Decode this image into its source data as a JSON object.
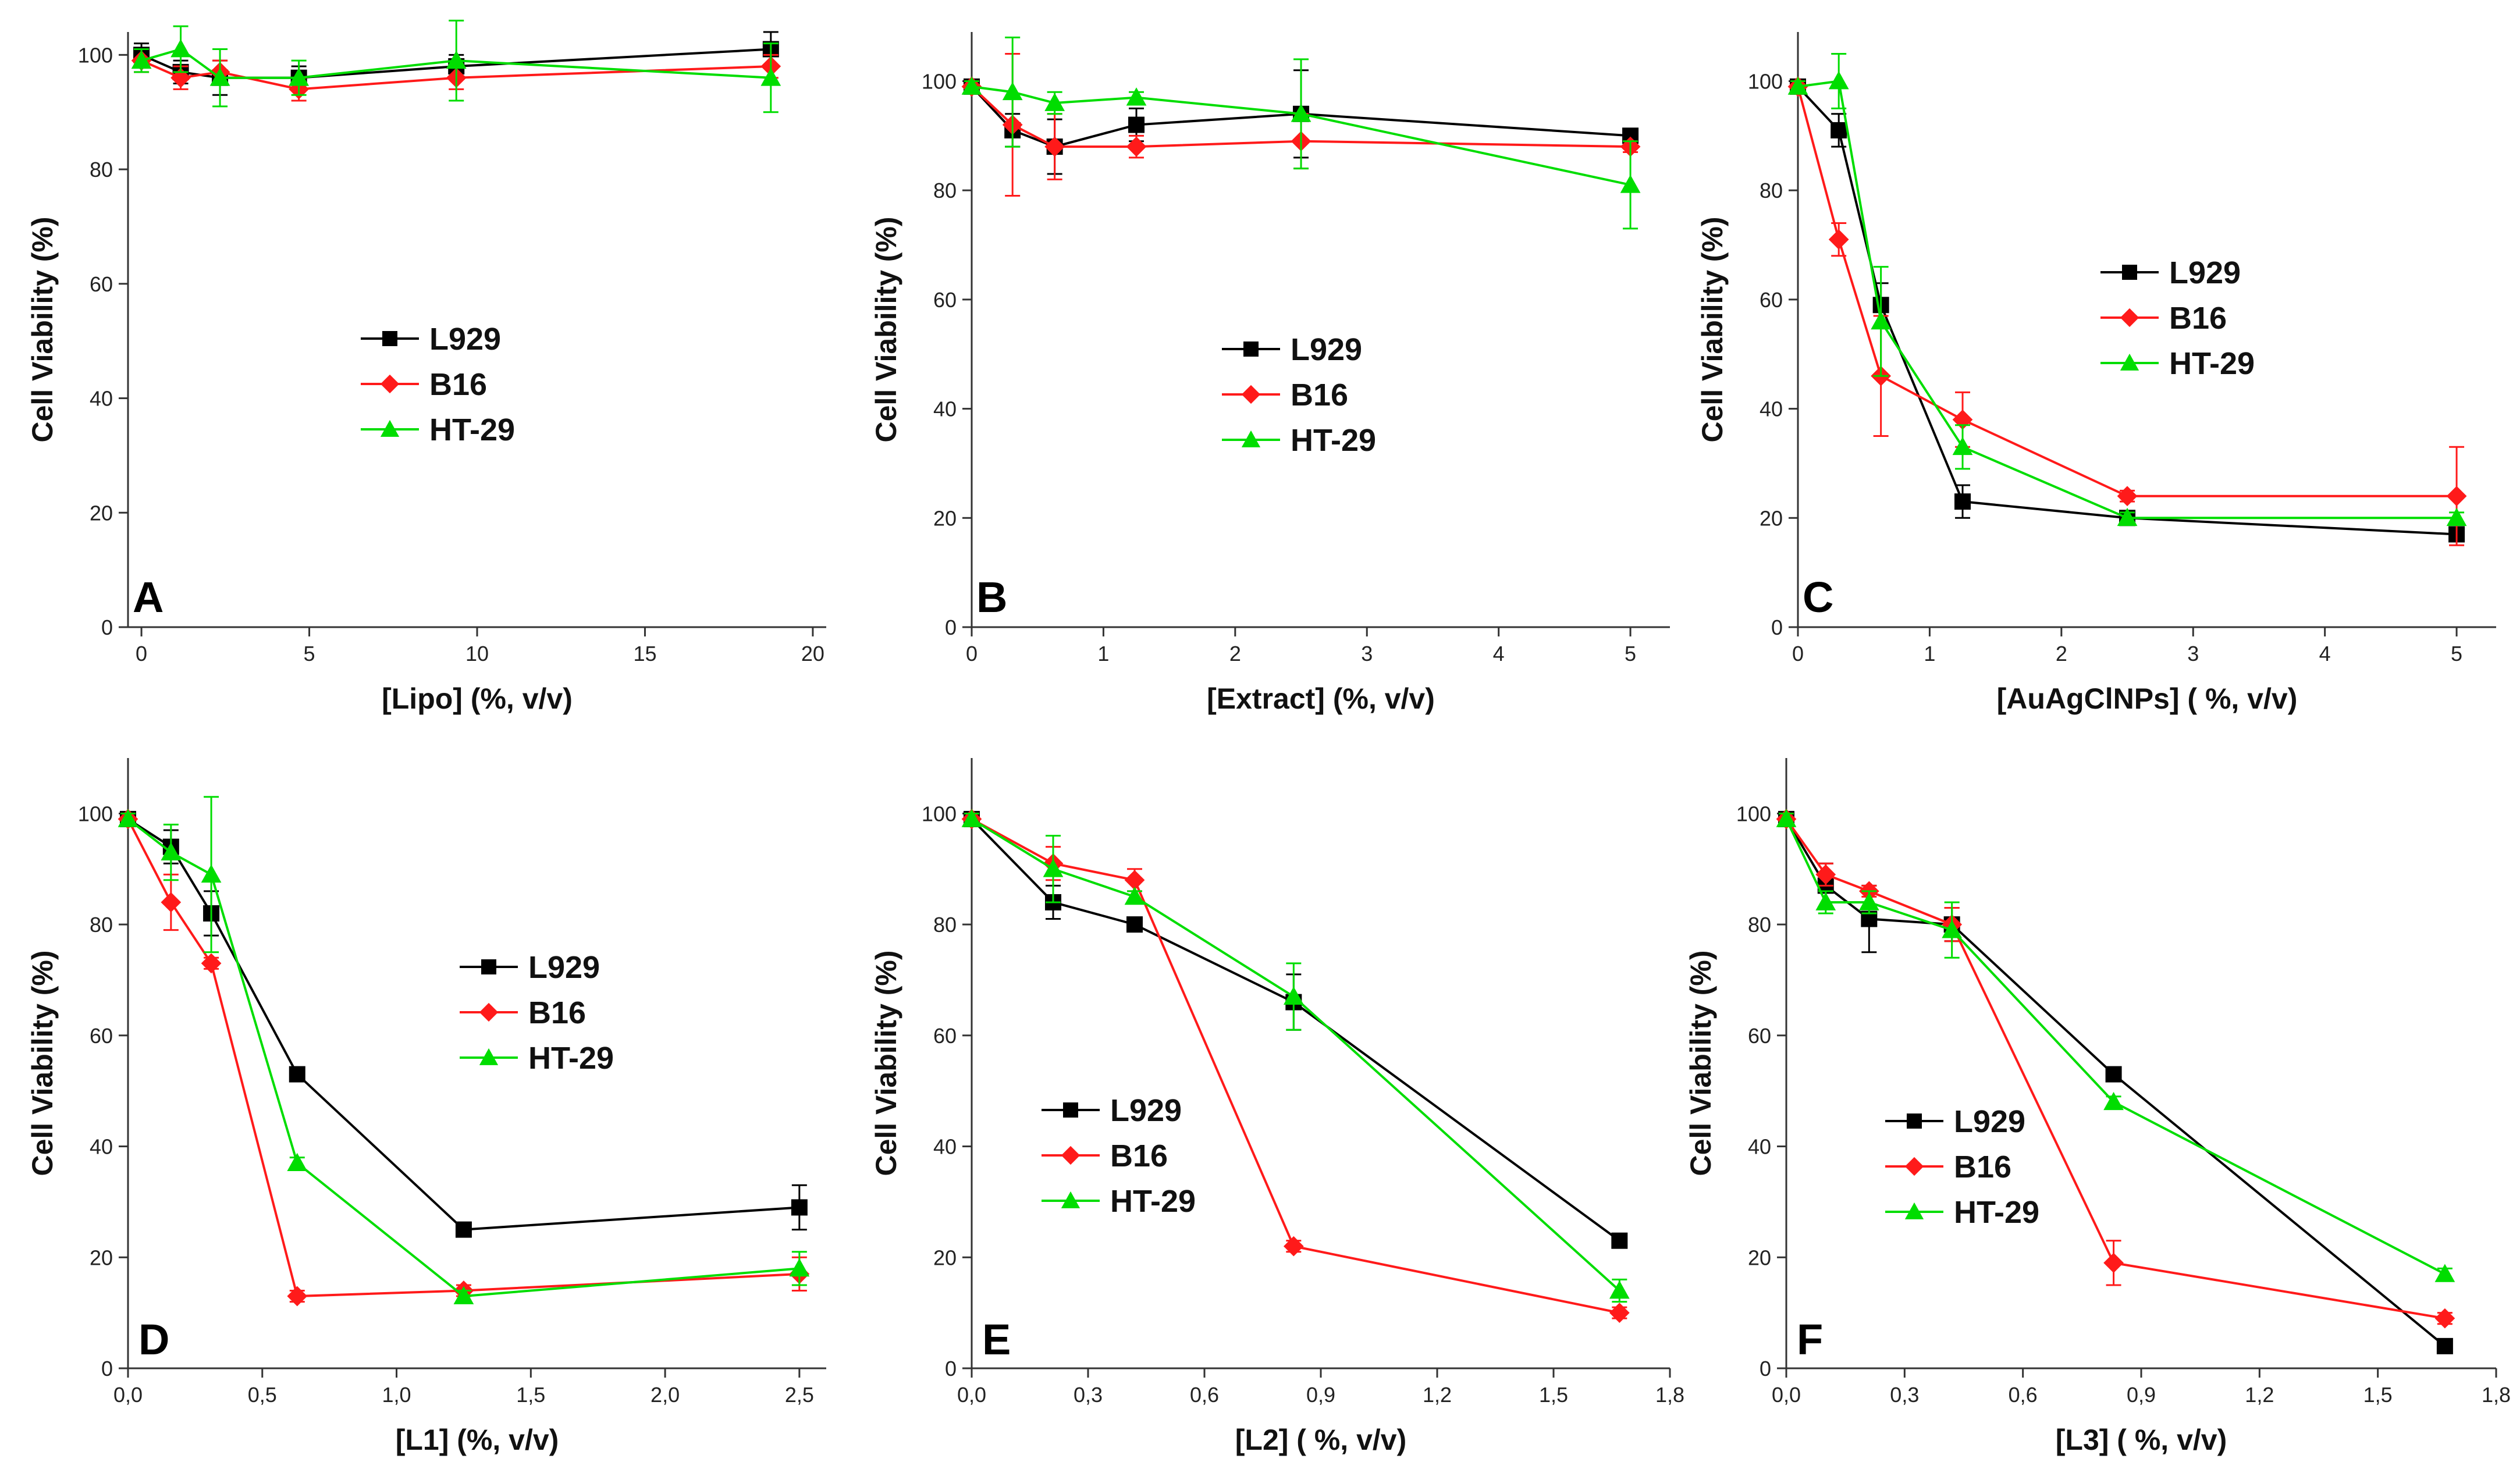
{
  "chart_data": [
    {
      "panel": "A",
      "type": "line",
      "xlabel": "[Lipo]  (%, v/v)",
      "ylabel": "Cell Viability  (%)",
      "xlim": [
        -0.4,
        20.4
      ],
      "ylim": [
        0,
        104
      ],
      "xticks": [
        0,
        5,
        10,
        15,
        20
      ],
      "xticklabels": [
        "0",
        "5",
        "10",
        "15",
        "20"
      ],
      "yticks": [
        0,
        20,
        40,
        60,
        80,
        100
      ],
      "yticklabels": [
        "0",
        "20",
        "40",
        "60",
        "80",
        "100"
      ],
      "legend": {
        "position": "center",
        "entries": [
          "L929",
          "B16",
          "HT-29"
        ]
      },
      "series": [
        {
          "name": "L929",
          "color": "#000000",
          "marker": "square",
          "x": [
            0,
            1.17,
            2.34,
            4.69,
            9.38,
            18.75
          ],
          "y": [
            100,
            97,
            96,
            96,
            98,
            101
          ],
          "err": [
            2,
            2,
            3,
            2,
            2,
            3
          ]
        },
        {
          "name": "B16",
          "color": "#ff1a1a",
          "marker": "diamond",
          "x": [
            0,
            1.17,
            2.34,
            4.69,
            9.38,
            18.75
          ],
          "y": [
            99,
            96,
            97,
            94,
            96,
            98
          ],
          "err": [
            2,
            2,
            2,
            2,
            2,
            2
          ]
        },
        {
          "name": "HT-29",
          "color": "#00dd00",
          "marker": "triangle",
          "x": [
            0,
            1.17,
            2.34,
            4.69,
            9.38,
            18.75
          ],
          "y": [
            99,
            101,
            96,
            96,
            99,
            96
          ],
          "err": [
            2,
            4,
            5,
            3,
            7,
            6
          ]
        }
      ]
    },
    {
      "panel": "B",
      "type": "line",
      "xlabel": "[Extract]   (%, v/v)",
      "ylabel": "Cell Viability (%)",
      "xlim": [
        0,
        5.3
      ],
      "ylim": [
        0,
        109
      ],
      "xticks": [
        0,
        1,
        2,
        3,
        4,
        5
      ],
      "xticklabels": [
        "0",
        "1",
        "2",
        "3",
        "4",
        "5"
      ],
      "yticks": [
        0,
        20,
        40,
        60,
        80,
        100
      ],
      "yticklabels": [
        "0",
        "20",
        "40",
        "60",
        "80",
        "100"
      ],
      "legend": {
        "position": "center",
        "entries": [
          "L929",
          "B16",
          "HT-29"
        ]
      },
      "series": [
        {
          "name": "L929",
          "color": "#000000",
          "marker": "square",
          "x": [
            0,
            0.31,
            0.63,
            1.25,
            2.5,
            5
          ],
          "y": [
            99,
            91,
            88,
            92,
            94,
            90
          ],
          "err": [
            1,
            3,
            5,
            3,
            8,
            1
          ]
        },
        {
          "name": "B16",
          "color": "#ff1a1a",
          "marker": "diamond",
          "x": [
            0,
            0.31,
            0.63,
            1.25,
            2.5,
            5
          ],
          "y": [
            99,
            92,
            88,
            88,
            89,
            88
          ],
          "err": [
            1,
            13,
            6,
            2,
            5,
            1
          ]
        },
        {
          "name": "HT-29",
          "color": "#00dd00",
          "marker": "triangle",
          "x": [
            0,
            0.31,
            0.63,
            1.25,
            2.5,
            5
          ],
          "y": [
            99,
            98,
            96,
            97,
            94,
            81
          ],
          "err": [
            1,
            10,
            2,
            1,
            10,
            8
          ]
        }
      ]
    },
    {
      "panel": "C",
      "type": "line",
      "xlabel": "[AuAgClNPs]  ( %, v/v)",
      "ylabel": "Cell Viability (%)",
      "xlim": [
        0,
        5.3
      ],
      "ylim": [
        0,
        109
      ],
      "xticks": [
        0,
        1,
        2,
        3,
        4,
        5
      ],
      "xticklabels": [
        "0",
        "1",
        "2",
        "3",
        "4",
        "5"
      ],
      "yticks": [
        0,
        20,
        40,
        60,
        80,
        100
      ],
      "yticklabels": [
        "0",
        "20",
        "40",
        "60",
        "80",
        "100"
      ],
      "legend": {
        "position": "upper-right",
        "entries": [
          "L929",
          "B16",
          "HT-29"
        ]
      },
      "series": [
        {
          "name": "L929",
          "color": "#000000",
          "marker": "square",
          "x": [
            0,
            0.31,
            0.63,
            1.25,
            2.5,
            5
          ],
          "y": [
            99,
            91,
            59,
            23,
            20,
            17
          ],
          "err": [
            1,
            3,
            4,
            3,
            1,
            1
          ]
        },
        {
          "name": "B16",
          "color": "#ff1a1a",
          "marker": "diamond",
          "x": [
            0,
            0.31,
            0.63,
            1.25,
            2.5,
            5
          ],
          "y": [
            99,
            71,
            46,
            38,
            24,
            24
          ],
          "err": [
            1,
            3,
            11,
            5,
            1,
            9
          ]
        },
        {
          "name": "HT-29",
          "color": "#00dd00",
          "marker": "triangle",
          "x": [
            0,
            0.31,
            0.63,
            1.25,
            2.5,
            5
          ],
          "y": [
            99,
            100,
            56,
            33,
            20,
            20
          ],
          "err": [
            1,
            5,
            10,
            4,
            1,
            1
          ]
        }
      ]
    },
    {
      "panel": "D",
      "type": "line",
      "xlabel": "[L1]  (%, v/v)",
      "ylabel": "Cell Viability (%)",
      "xlim": [
        0,
        2.6
      ],
      "ylim": [
        0,
        110
      ],
      "xticks": [
        0,
        0.5,
        1,
        1.5,
        2,
        2.5
      ],
      "xticklabels": [
        "0,0",
        "0,5",
        "1,0",
        "1,5",
        "2,0",
        "2,5"
      ],
      "yticks": [
        0,
        20,
        40,
        60,
        80,
        100
      ],
      "yticklabels": [
        "0",
        "20",
        "40",
        "60",
        "80",
        "100"
      ],
      "legend": {
        "position": "center-right",
        "entries": [
          "L929",
          "B16",
          "HT-29"
        ]
      },
      "series": [
        {
          "name": "L929",
          "color": "#000000",
          "marker": "square",
          "x": [
            0,
            0.16,
            0.31,
            0.63,
            1.25,
            2.5
          ],
          "y": [
            99,
            94,
            82,
            53,
            25,
            29
          ],
          "err": [
            1,
            3,
            4,
            1,
            1,
            4
          ]
        },
        {
          "name": "B16",
          "color": "#ff1a1a",
          "marker": "diamond",
          "x": [
            0,
            0.16,
            0.31,
            0.63,
            1.25,
            2.5
          ],
          "y": [
            99,
            84,
            73,
            13,
            14,
            17
          ],
          "err": [
            1,
            5,
            1,
            1,
            1,
            3
          ]
        },
        {
          "name": "HT-29",
          "color": "#00dd00",
          "marker": "triangle",
          "x": [
            0,
            0.16,
            0.31,
            0.63,
            1.25,
            2.5
          ],
          "y": [
            99,
            93,
            89,
            37,
            13,
            18
          ],
          "err": [
            1,
            5,
            14,
            1,
            1,
            3
          ]
        }
      ]
    },
    {
      "panel": "E",
      "type": "line",
      "xlabel": "[L2]  ( %, v/v)",
      "ylabel": "Cell Viability (%)",
      "xlim": [
        0,
        1.8
      ],
      "ylim": [
        0,
        110
      ],
      "xticks": [
        0,
        0.3,
        0.6,
        0.9,
        1.2,
        1.5,
        1.8
      ],
      "xticklabels": [
        "0,0",
        "0,3",
        "0,6",
        "0,9",
        "1,2",
        "1,5",
        "1,8"
      ],
      "yticks": [
        0,
        20,
        40,
        60,
        80,
        100
      ],
      "yticklabels": [
        "0",
        "20",
        "40",
        "60",
        "80",
        "100"
      ],
      "legend": {
        "position": "center-left",
        "entries": [
          "L929",
          "B16",
          "HT-29"
        ]
      },
      "series": [
        {
          "name": "L929",
          "color": "#000000",
          "marker": "square",
          "x": [
            0,
            0.21,
            0.42,
            0.83,
            1.67
          ],
          "y": [
            99,
            84,
            80,
            66,
            23
          ],
          "err": [
            1,
            3,
            1,
            5,
            1
          ]
        },
        {
          "name": "B16",
          "color": "#ff1a1a",
          "marker": "diamond",
          "x": [
            0,
            0.21,
            0.42,
            0.83,
            1.67
          ],
          "y": [
            99,
            91,
            88,
            22,
            10
          ],
          "err": [
            1,
            3,
            2,
            1,
            1
          ]
        },
        {
          "name": "HT-29",
          "color": "#00dd00",
          "marker": "triangle",
          "x": [
            0,
            0.21,
            0.42,
            0.83,
            1.67
          ],
          "y": [
            99,
            90,
            85,
            67,
            14
          ],
          "err": [
            1,
            6,
            1,
            6,
            2
          ]
        }
      ]
    },
    {
      "panel": "F",
      "type": "line",
      "xlabel": "[L3]  ( %, v/v)",
      "ylabel": "Cell Viability (%)",
      "xlim": [
        0,
        1.8
      ],
      "ylim": [
        0,
        110
      ],
      "xticks": [
        0,
        0.3,
        0.6,
        0.9,
        1.2,
        1.5,
        1.8
      ],
      "xticklabels": [
        "0,0",
        "0,3",
        "0,6",
        "0,9",
        "1,2",
        "1,5",
        "1,8"
      ],
      "yticks": [
        0,
        20,
        40,
        60,
        80,
        100
      ],
      "yticklabels": [
        "0",
        "20",
        "40",
        "60",
        "80",
        "100"
      ],
      "legend": {
        "position": "center-left",
        "entries": [
          "L929",
          "B16",
          "HT-29"
        ]
      },
      "series": [
        {
          "name": "L929",
          "color": "#000000",
          "marker": "square",
          "x": [
            0,
            0.1,
            0.21,
            0.42,
            0.83,
            1.67
          ],
          "y": [
            99,
            87,
            81,
            80,
            53,
            4
          ],
          "err": [
            1,
            4,
            6,
            3,
            1,
            1
          ]
        },
        {
          "name": "B16",
          "color": "#ff1a1a",
          "marker": "diamond",
          "x": [
            0,
            0.1,
            0.21,
            0.42,
            0.83,
            1.67
          ],
          "y": [
            99,
            89,
            86,
            80,
            19,
            9
          ],
          "err": [
            1,
            2,
            1,
            3,
            4,
            1
          ]
        },
        {
          "name": "HT-29",
          "color": "#00dd00",
          "marker": "triangle",
          "x": [
            0,
            0.1,
            0.21,
            0.42,
            0.83,
            1.67
          ],
          "y": [
            99,
            84,
            84,
            79,
            48,
            17
          ],
          "err": [
            1,
            2,
            2,
            5,
            1,
            1
          ]
        }
      ]
    }
  ]
}
